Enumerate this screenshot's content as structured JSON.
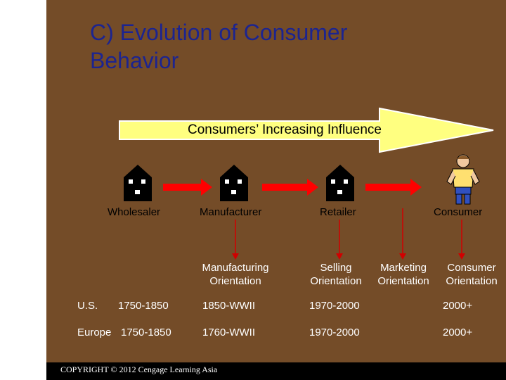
{
  "title": {
    "line1": "C) Evolution of Consumer",
    "line2": "Behavior"
  },
  "influence_arrow": {
    "label": "Consumers’ Increasing Influence"
  },
  "stages": [
    {
      "label": "Wholesaler",
      "icon": "house-icon"
    },
    {
      "label": "Manufacturer",
      "icon": "house-icon"
    },
    {
      "label": "Retailer",
      "icon": "house-icon"
    },
    {
      "label": "Consumer",
      "icon": "person-icon"
    }
  ],
  "orientations": [
    {
      "line1": "Manufacturing",
      "line2": "Orientation"
    },
    {
      "line1": "Selling",
      "line2": "Orientation"
    },
    {
      "line1": "Marketing",
      "line2": "Orientation"
    },
    {
      "line1": "Consumer",
      "line2": "Orientation"
    }
  ],
  "timeline": [
    {
      "region": "U.S.",
      "periods": [
        "1750-1850",
        "1850-WWII",
        "1970-2000",
        "2000+"
      ]
    },
    {
      "region": "Europe",
      "periods": [
        "1750-1850",
        "1760-WWII",
        "1970-2000",
        "2000+"
      ]
    }
  ],
  "footer": {
    "copyright": "COPYRIGHT © 2012 Cengage Learning Asia"
  },
  "colors": {
    "background": "#744c28",
    "title": "#1c2490",
    "arrow_fill": "#ffff80",
    "red_arrow": "#ff0000"
  }
}
